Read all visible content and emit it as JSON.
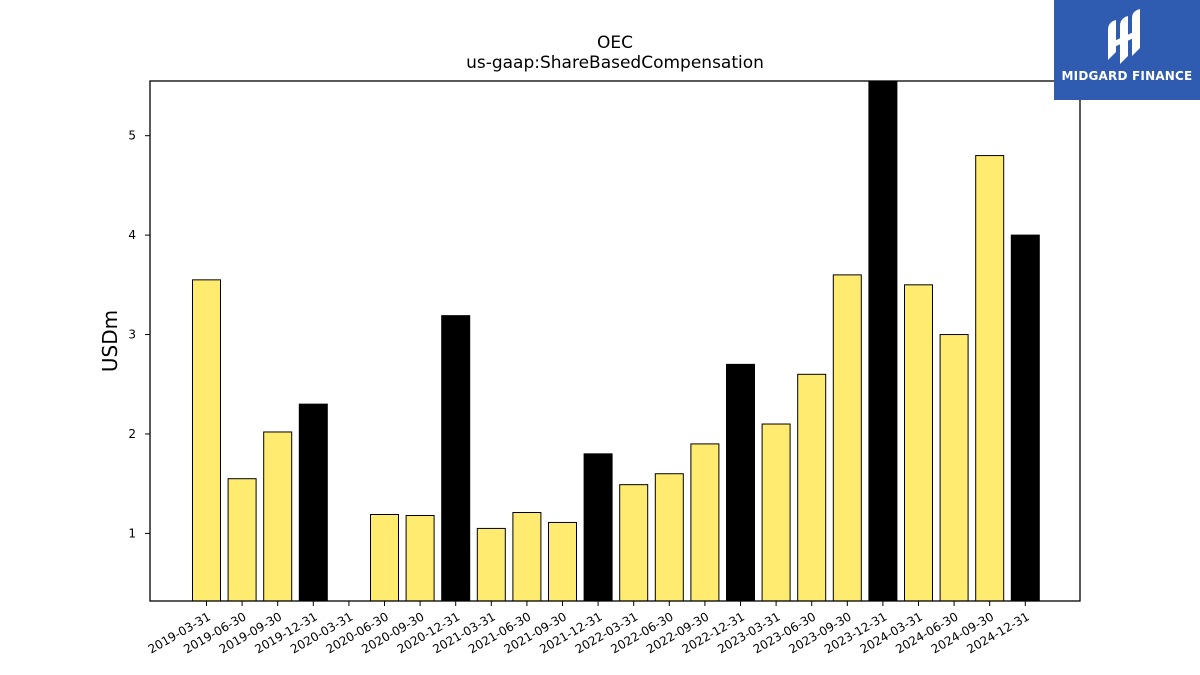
{
  "chart_data": {
    "type": "bar",
    "title": "OEC",
    "subtitle": "us-gaap:ShareBasedCompensation",
    "xlabel": "",
    "ylabel": "USDm",
    "ylim": [
      0.32,
      5.55
    ],
    "yticks": [
      1,
      2,
      3,
      4,
      5
    ],
    "grid": false,
    "categories": [
      "2019-03-31",
      "2019-06-30",
      "2019-09-30",
      "2019-12-31",
      "2020-03-31",
      "2020-06-30",
      "2020-09-30",
      "2020-12-31",
      "2021-03-31",
      "2021-06-30",
      "2021-09-30",
      "2021-12-31",
      "2022-03-31",
      "2022-06-30",
      "2022-09-30",
      "2022-12-31",
      "2023-03-31",
      "2023-06-30",
      "2023-09-30",
      "2023-12-31",
      "2024-03-31",
      "2024-06-30",
      "2024-09-30",
      "2024-12-31"
    ],
    "values": [
      3.55,
      1.55,
      2.02,
      2.3,
      null,
      1.19,
      1.18,
      3.19,
      1.05,
      1.21,
      1.11,
      1.8,
      1.49,
      1.6,
      1.9,
      2.7,
      2.1,
      2.6,
      3.6,
      5.6,
      3.5,
      3.0,
      4.8,
      4.0
    ],
    "fiscal_year_end": [
      false,
      false,
      false,
      true,
      false,
      false,
      false,
      true,
      false,
      false,
      false,
      true,
      false,
      false,
      false,
      true,
      false,
      false,
      false,
      true,
      false,
      false,
      false,
      true
    ],
    "colors": {
      "quarter": "#ffeb70",
      "year_end": "#000000",
      "edge": "#000000"
    }
  },
  "logo": {
    "text": "MIDGARD FINANCE",
    "background": "#2f5bb0"
  }
}
